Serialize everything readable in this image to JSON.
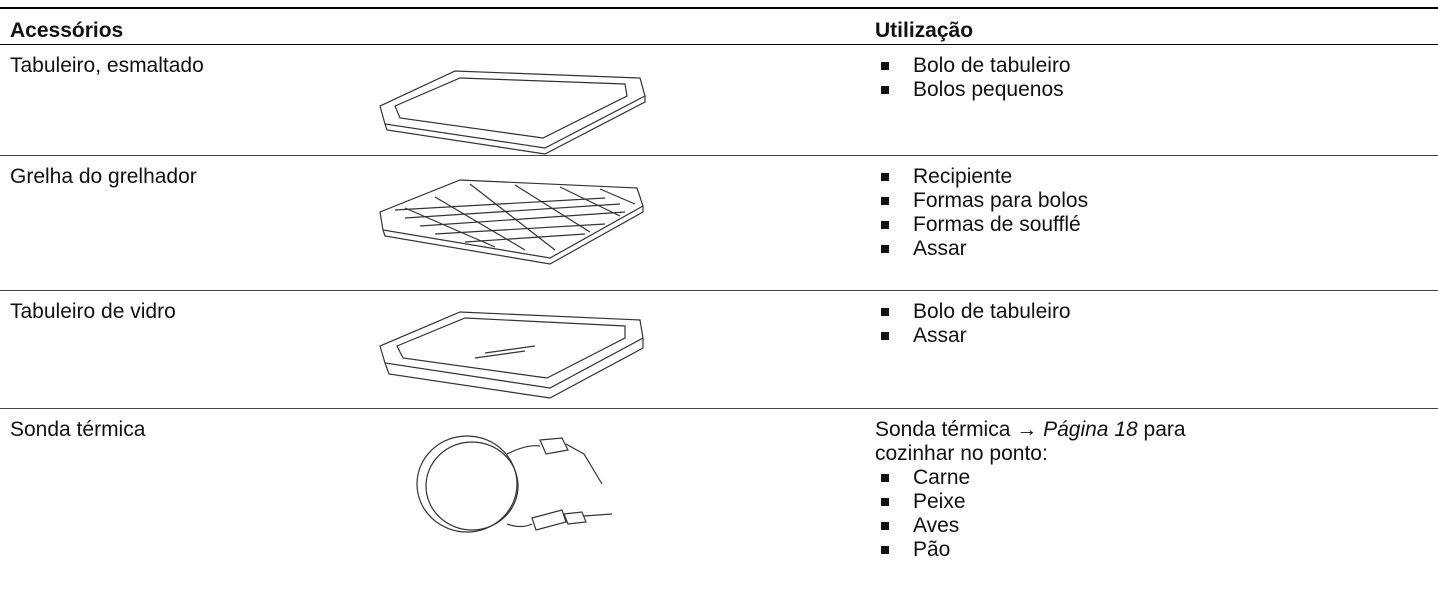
{
  "table": {
    "header": [
      "Acessórios",
      "Utilização"
    ],
    "rows": [
      {
        "name": "Tabuleiro, esmaltado",
        "uses": [
          "Bolo de tabuleiro",
          "Bolos pequenos"
        ]
      },
      {
        "name": "Grelha do grelhador",
        "uses": [
          "Recipiente",
          "Formas para bolos",
          "Formas de soufflé",
          "Assar"
        ]
      },
      {
        "name": "Tabuleiro de vidro",
        "uses": [
          "Bolo de tabuleiro",
          "Assar"
        ]
      },
      {
        "name": "Sonda térmica",
        "note": {
          "text": "Sonda térmica →",
          "link": "Página 18",
          "after": "para cozinhar no ponto:"
        },
        "uses": [
          "Carne",
          "Peixe",
          "Aves",
          "Pão"
        ]
      }
    ]
  }
}
